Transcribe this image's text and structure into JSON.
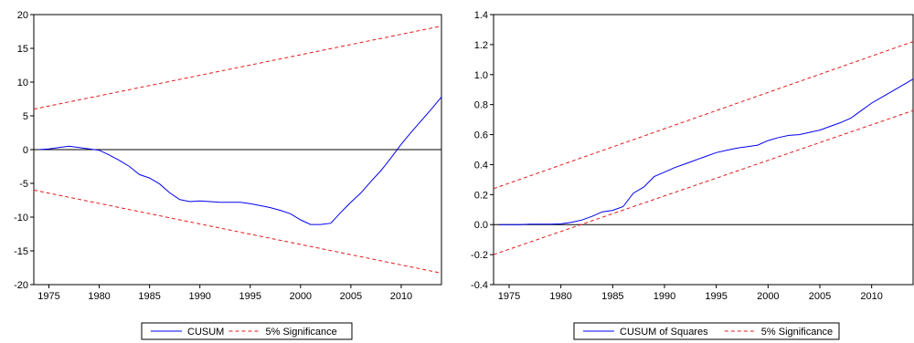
{
  "colors": {
    "series": "#0000ee",
    "significance": "#e31a1c",
    "axis": "#000000"
  },
  "chart_data": [
    {
      "type": "line",
      "title": "",
      "xlabel": "",
      "ylabel": "",
      "xlim": [
        1973.5,
        2014
      ],
      "ylim": [
        -20,
        20
      ],
      "x_ticks": [
        1975,
        1980,
        1985,
        1990,
        1995,
        2000,
        2005,
        2010
      ],
      "x_tick_labels": [
        "1975",
        "1980",
        "1985",
        "1990",
        "1995",
        "2000",
        "2005",
        "2010"
      ],
      "y_ticks": [
        -20,
        -15,
        -10,
        -5,
        0,
        5,
        10,
        15,
        20
      ],
      "y_tick_labels": [
        "-20",
        "-15",
        "-10",
        "-5",
        "0",
        "5",
        "10",
        "15",
        "20"
      ],
      "zero_line": 0,
      "grid": false,
      "legend_position": "bottom-center",
      "legend": [
        "CUSUM",
        "5% Significance"
      ],
      "series": [
        {
          "name": "CUSUM",
          "style": "solid",
          "x": [
            1974,
            1975,
            1976,
            1977,
            1978,
            1979,
            1980,
            1981,
            1982,
            1983,
            1984,
            1985,
            1986,
            1987,
            1988,
            1989,
            1990,
            1991,
            1992,
            1993,
            1994,
            1995,
            1996,
            1997,
            1998,
            1999,
            2000,
            2001,
            2002,
            2003,
            2004,
            2005,
            2006,
            2007,
            2008,
            2009,
            2010,
            2011,
            2012,
            2013,
            2014
          ],
          "y": [
            0,
            0.1,
            0.3,
            0.5,
            0.3,
            0.1,
            -0.1,
            -0.8,
            -1.6,
            -2.5,
            -3.7,
            -4.2,
            -5.1,
            -6.4,
            -7.4,
            -7.7,
            -7.6,
            -7.7,
            -7.8,
            -7.8,
            -7.8,
            -8.0,
            -8.3,
            -8.6,
            -9.0,
            -9.5,
            -10.4,
            -11.1,
            -11.1,
            -10.9,
            -9.3,
            -7.8,
            -6.4,
            -4.7,
            -3.1,
            -1.2,
            0.8,
            2.6,
            4.3,
            6.0,
            7.8
          ]
        },
        {
          "name": "5% Significance",
          "style": "dashed",
          "x": [
            1973.5,
            2014
          ],
          "y": [
            6.0,
            18.3
          ]
        },
        {
          "name": "5% Significance",
          "style": "dashed",
          "x": [
            1973.5,
            2014
          ],
          "y": [
            -6.0,
            -18.3
          ]
        }
      ]
    },
    {
      "type": "line",
      "title": "",
      "xlabel": "",
      "ylabel": "",
      "xlim": [
        1973.5,
        2014
      ],
      "ylim": [
        -0.4,
        1.4
      ],
      "x_ticks": [
        1975,
        1980,
        1985,
        1990,
        1995,
        2000,
        2005,
        2010
      ],
      "x_tick_labels": [
        "1975",
        "1980",
        "1985",
        "1990",
        "1995",
        "2000",
        "2005",
        "2010"
      ],
      "y_ticks": [
        -0.4,
        -0.2,
        0.0,
        0.2,
        0.4,
        0.6,
        0.8,
        1.0,
        1.2,
        1.4
      ],
      "y_tick_labels": [
        "-0.4",
        "-0.2",
        "0.0",
        "0.2",
        "0.4",
        "0.6",
        "0.8",
        "1.0",
        "1.2",
        "1.4"
      ],
      "zero_line": 0,
      "grid": false,
      "legend_position": "bottom-center",
      "legend": [
        "CUSUM of Squares",
        "5% Significance"
      ],
      "series": [
        {
          "name": "CUSUM of Squares",
          "style": "solid",
          "x": [
            1974,
            1975,
            1976,
            1977,
            1978,
            1979,
            1980,
            1981,
            1982,
            1983,
            1984,
            1985,
            1986,
            1987,
            1988,
            1989,
            1990,
            1991,
            1992,
            1993,
            1994,
            1995,
            1996,
            1997,
            1998,
            1999,
            2000,
            2001,
            2002,
            2003,
            2004,
            2005,
            2006,
            2007,
            2008,
            2009,
            2010,
            2011,
            2012,
            2013,
            2014
          ],
          "y": [
            0.0,
            0.0,
            0.0,
            0.003,
            0.003,
            0.003,
            0.005,
            0.015,
            0.03,
            0.055,
            0.085,
            0.095,
            0.12,
            0.21,
            0.25,
            0.32,
            0.35,
            0.38,
            0.405,
            0.43,
            0.455,
            0.48,
            0.495,
            0.51,
            0.52,
            0.53,
            0.56,
            0.58,
            0.595,
            0.6,
            0.615,
            0.63,
            0.655,
            0.68,
            0.71,
            0.76,
            0.81,
            0.85,
            0.89,
            0.93,
            0.97
          ]
        },
        {
          "name": "5% Significance",
          "style": "dashed",
          "x": [
            1973.5,
            2014
          ],
          "y": [
            0.24,
            1.22
          ]
        },
        {
          "name": "5% Significance",
          "style": "dashed",
          "x": [
            1973.5,
            2014
          ],
          "y": [
            -0.2,
            0.76
          ]
        }
      ]
    }
  ]
}
